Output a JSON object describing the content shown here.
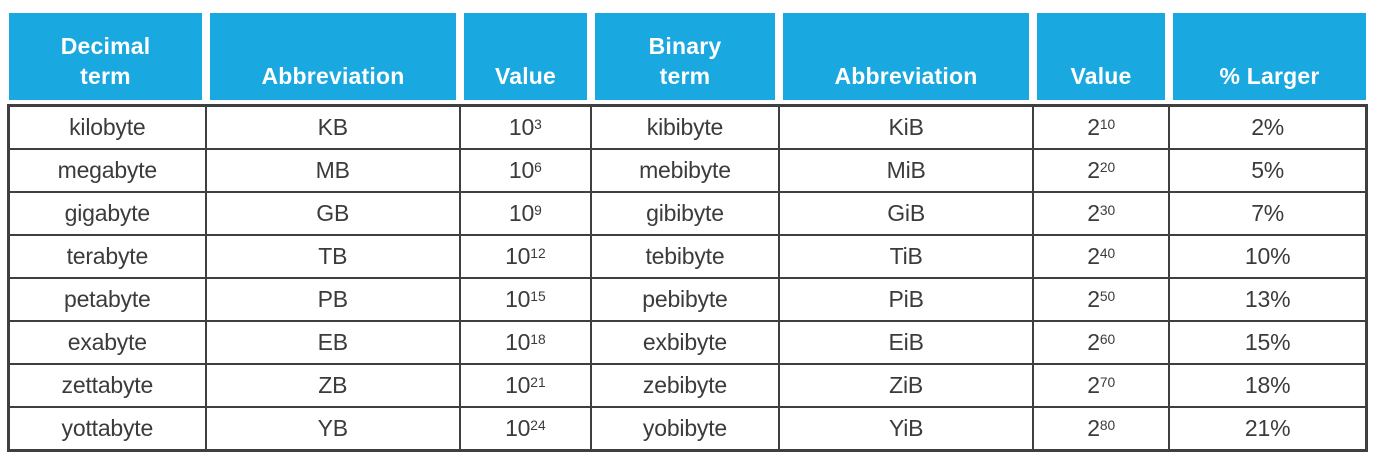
{
  "colors": {
    "header_bg": "#1AA8E0",
    "header_text": "#FFFFFF",
    "body_text": "#3B3B3B",
    "border": "#3F3F3F",
    "page_bg": "#FFFFFF"
  },
  "table": {
    "display_headers": [
      "Decimal\nterm",
      "Abbreviation",
      "Value",
      "Binary\nterm",
      "Abbreviation",
      "Value",
      "% Larger"
    ]
  },
  "chart_data": {
    "type": "table",
    "title": "",
    "columns": [
      "Decimal term",
      "Abbreviation",
      "Value",
      "Binary term",
      "Abbreviation",
      "Value",
      "% Larger"
    ],
    "rows": [
      [
        "kilobyte",
        "KB",
        "10^3",
        "kibibyte",
        "KiB",
        "2^10",
        "2%"
      ],
      [
        "megabyte",
        "MB",
        "10^6",
        "mebibyte",
        "MiB",
        "2^20",
        "5%"
      ],
      [
        "gigabyte",
        "GB",
        "10^9",
        "gibibyte",
        "GiB",
        "2^30",
        "7%"
      ],
      [
        "terabyte",
        "TB",
        "10^12",
        "tebibyte",
        "TiB",
        "2^40",
        "10%"
      ],
      [
        "petabyte",
        "PB",
        "10^15",
        "pebibyte",
        "PiB",
        "2^50",
        "13%"
      ],
      [
        "exabyte",
        "EB",
        "10^18",
        "exbibyte",
        "EiB",
        "2^60",
        "15%"
      ],
      [
        "zettabyte",
        "ZB",
        "10^21",
        "zebibyte",
        "ZiB",
        "2^70",
        "18%"
      ],
      [
        "yottabyte",
        "YB",
        "10^24",
        "yobibyte",
        "YiB",
        "2^80",
        "21%"
      ]
    ]
  }
}
